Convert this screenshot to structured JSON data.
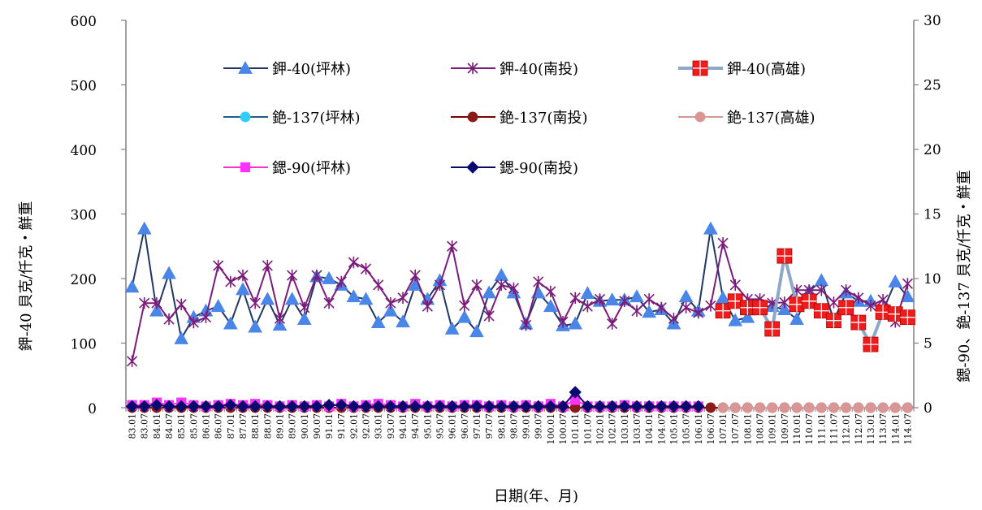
{
  "chart_data": {
    "type": "line",
    "xlabel": "日期(年、月)",
    "ylabel_left": "鉀-40 貝克/仟克・鮮重",
    "ylabel_right": "鍶-90、銫-137 貝克/仟克・鮮重",
    "ylim_left": [
      0,
      600
    ],
    "yticks_left": [
      "0",
      "100",
      "200",
      "300",
      "400",
      "500",
      "600"
    ],
    "ylim_right": [
      0,
      30
    ],
    "yticks_right": [
      "0",
      "5",
      "10",
      "15",
      "20",
      "25",
      "30"
    ],
    "grid": false,
    "legend_position": "top-center",
    "x_labels": [
      "83.01",
      "83.07",
      "84.01",
      "84.07",
      "85.01",
      "85.07",
      "86.01",
      "86.07",
      "87.01",
      "87.07",
      "88.01",
      "88.07",
      "89.01",
      "89.07",
      "90.01",
      "90.07",
      "91.01",
      "91.07",
      "92.01",
      "92.07",
      "93.01",
      "93.07",
      "94.01",
      "94.07",
      "95.01",
      "95.07",
      "96.01",
      "96.07",
      "97.01",
      "97.07",
      "98.01",
      "98.07",
      "99.01",
      "99.07",
      "100.01",
      "100.07",
      "101.01",
      "101.07",
      "102.01",
      "102.07",
      "103.01",
      "103.07",
      "104.01",
      "104.07",
      "105.01",
      "105.07",
      "106.01",
      "106.07",
      "107.01",
      "107.07",
      "108.01",
      "108.07",
      "109.01",
      "109.07",
      "110.01",
      "110.07",
      "111.01",
      "111.07",
      "112.01",
      "112.07",
      "113.01",
      "113.07",
      "114.01",
      "114.07"
    ],
    "series": [
      {
        "name": "鉀-40(坪林)",
        "axis": "left",
        "color": "#1f3864",
        "marker": "triangle",
        "marker_color": "#4a86e8",
        "values": [
          187,
          277,
          150,
          208,
          107,
          140,
          150,
          157,
          130,
          183,
          125,
          168,
          128,
          168,
          137,
          203,
          200,
          190,
          172,
          168,
          132,
          150,
          133,
          190,
          168,
          197,
          122,
          140,
          118,
          178,
          205,
          178,
          130,
          178,
          157,
          127,
          130,
          177,
          165,
          167,
          167,
          172,
          148,
          152,
          130,
          172,
          150,
          277,
          170,
          135,
          140,
          157,
          157,
          152,
          137,
          180,
          197,
          135,
          178,
          165,
          165,
          150,
          195,
          172
        ]
      },
      {
        "name": "鉀-40(南投)",
        "axis": "left",
        "color": "#7b1c7b",
        "marker": "asterisk",
        "marker_color": "#7b1c7b",
        "values": [
          72,
          162,
          162,
          137,
          160,
          132,
          140,
          220,
          195,
          205,
          162,
          220,
          138,
          205,
          155,
          205,
          162,
          195,
          225,
          215,
          190,
          162,
          170,
          205,
          157,
          190,
          250,
          158,
          190,
          142,
          190,
          185,
          128,
          195,
          180,
          133,
          170,
          157,
          168,
          130,
          165,
          150,
          168,
          155,
          138,
          155,
          147,
          158,
          255,
          190,
          168,
          168,
          162,
          163,
          182,
          182,
          182,
          163,
          182,
          170,
          158,
          167,
          133,
          192
        ]
      },
      {
        "name": "鉀-40(高雄)",
        "axis": "left",
        "color": "#8ea9c8",
        "marker": "square-plus",
        "marker_color": "#ee1c1c",
        "values": [
          null,
          null,
          null,
          null,
          null,
          null,
          null,
          null,
          null,
          null,
          null,
          null,
          null,
          null,
          null,
          null,
          null,
          null,
          null,
          null,
          null,
          null,
          null,
          null,
          null,
          null,
          null,
          null,
          null,
          null,
          null,
          null,
          null,
          null,
          null,
          null,
          null,
          null,
          null,
          null,
          null,
          null,
          null,
          null,
          null,
          null,
          null,
          null,
          150,
          165,
          155,
          155,
          122,
          235,
          160,
          165,
          150,
          135,
          155,
          132,
          98,
          148,
          145,
          140
        ]
      },
      {
        "name": "銫-137(坪林)",
        "axis": "right",
        "color": "#1f5c8f",
        "marker": "circle",
        "marker_color": "#33ccff",
        "values": [
          null,
          null,
          null,
          null,
          null,
          null,
          null,
          null,
          null,
          null,
          null,
          null,
          null,
          null,
          null,
          null,
          null,
          null,
          null,
          null,
          null,
          null,
          null,
          null,
          null,
          null,
          null,
          null,
          null,
          null,
          null,
          null,
          null,
          null,
          null,
          null,
          null,
          null,
          null,
          null,
          null,
          null,
          null,
          null,
          null,
          null,
          null,
          null,
          0,
          0,
          0,
          0,
          0,
          0,
          0,
          0,
          0,
          0,
          0,
          0,
          0,
          0,
          0,
          0
        ]
      },
      {
        "name": "銫-137(南投)",
        "axis": "right",
        "color": "#7f0000",
        "marker": "circle",
        "marker_color": "#8b1a1a",
        "values": [
          0,
          0,
          0,
          0,
          0,
          0,
          0,
          0,
          0,
          0,
          0,
          0,
          0,
          0,
          0,
          0,
          0,
          0,
          0,
          0,
          0,
          0,
          0,
          0,
          0,
          0,
          0,
          0,
          0,
          0,
          0,
          0,
          0,
          0,
          0,
          0,
          0,
          0,
          0,
          0,
          0,
          0,
          0,
          0,
          0,
          0,
          0,
          0,
          0,
          0,
          0,
          0,
          0,
          0,
          0,
          0,
          0,
          0,
          0,
          0,
          0,
          0,
          0,
          0
        ]
      },
      {
        "name": "銫-137(高雄)",
        "axis": "right",
        "color": "#d99694",
        "marker": "circle",
        "marker_color": "#d99694",
        "values": [
          null,
          null,
          null,
          null,
          null,
          null,
          null,
          null,
          null,
          null,
          null,
          null,
          null,
          null,
          null,
          null,
          null,
          null,
          null,
          null,
          null,
          null,
          null,
          null,
          null,
          null,
          null,
          null,
          null,
          null,
          null,
          null,
          null,
          null,
          null,
          null,
          null,
          null,
          null,
          null,
          null,
          null,
          null,
          null,
          null,
          null,
          null,
          null,
          0,
          0,
          0,
          0,
          0,
          0,
          0,
          0,
          0,
          0,
          0,
          0,
          0,
          0,
          0,
          0
        ]
      },
      {
        "name": "鍶-90(坪林)",
        "axis": "right",
        "color": "#ff33cc",
        "marker": "square",
        "marker_color": "#ff33ff",
        "values": [
          0.2,
          0.2,
          0.4,
          0.2,
          0.4,
          0.2,
          0.1,
          0.2,
          0.3,
          0.2,
          0.3,
          0.2,
          0.1,
          0.2,
          0.1,
          0.2,
          0.1,
          0.3,
          0.1,
          0.2,
          0.3,
          0.2,
          0.1,
          0.3,
          0.1,
          0.2,
          0.1,
          0.2,
          0.2,
          0.1,
          0.2,
          0.1,
          0.2,
          0.1,
          0.3,
          0.1,
          0.6,
          0.1,
          0.1,
          0.1,
          0.2,
          0.1,
          0.1,
          0.1,
          0.1,
          0.1,
          0.1
        ]
      },
      {
        "name": "鍶-90(南投)",
        "axis": "right",
        "color": "#0a0a6e",
        "marker": "diamond",
        "marker_color": "#0a0a6e",
        "values": [
          0.1,
          0.1,
          0.2,
          0.1,
          0.1,
          0.1,
          0.1,
          0.1,
          0.2,
          0.1,
          0.1,
          0.1,
          0.1,
          0.1,
          0.1,
          0.1,
          0.2,
          0.2,
          0.1,
          0.1,
          0.1,
          0.1,
          0.1,
          0.1,
          0.1,
          0.1,
          0.1,
          0.1,
          0.1,
          0.1,
          0.1,
          0.1,
          0.1,
          0.1,
          0.1,
          0.1,
          1.2,
          0.1,
          0.1,
          0.1,
          0.1,
          0.1,
          0.1,
          0.1,
          0.1,
          0.1,
          0.1
        ]
      }
    ]
  }
}
